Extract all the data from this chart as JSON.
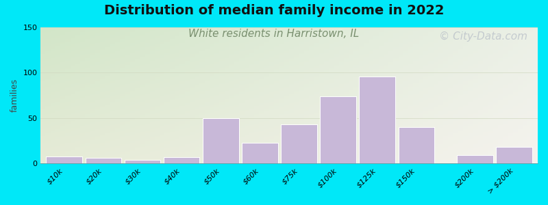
{
  "title": "Distribution of median family income in 2022",
  "subtitle": "White residents in Harristown, IL",
  "watermark": "© City-Data.com",
  "ylabel": "families",
  "ylim": [
    0,
    150
  ],
  "yticks": [
    0,
    50,
    100,
    150
  ],
  "categories": [
    "$10k",
    "$20k",
    "$30k",
    "$40k",
    "$50k",
    "$60k",
    "$75k",
    "$100k",
    "$125k",
    "$150k",
    "$200k",
    "> $200k"
  ],
  "values": [
    8,
    6,
    4,
    7,
    50,
    23,
    43,
    74,
    96,
    40,
    9,
    18
  ],
  "bar_left_edges": [
    0,
    1,
    2,
    3,
    4,
    5,
    6,
    7,
    8,
    9,
    10.5,
    11.5
  ],
  "bar_widths": [
    1,
    1,
    1,
    1,
    1,
    1,
    1,
    1,
    1,
    1,
    1,
    1
  ],
  "bar_color": "#c8b8d8",
  "bar_edge_color": "#ffffff",
  "bg_outer": "#00e8f8",
  "grad_tl": [
    210,
    230,
    200
  ],
  "grad_tr": [
    235,
    240,
    230
  ],
  "grad_bl": [
    230,
    235,
    215
  ],
  "grad_br": [
    245,
    243,
    238
  ],
  "title_fontsize": 14,
  "subtitle_fontsize": 11,
  "subtitle_color": "#7a9070",
  "ylabel_fontsize": 9,
  "tick_fontsize": 8,
  "watermark_color": "#b8bfc8",
  "watermark_fontsize": 11
}
